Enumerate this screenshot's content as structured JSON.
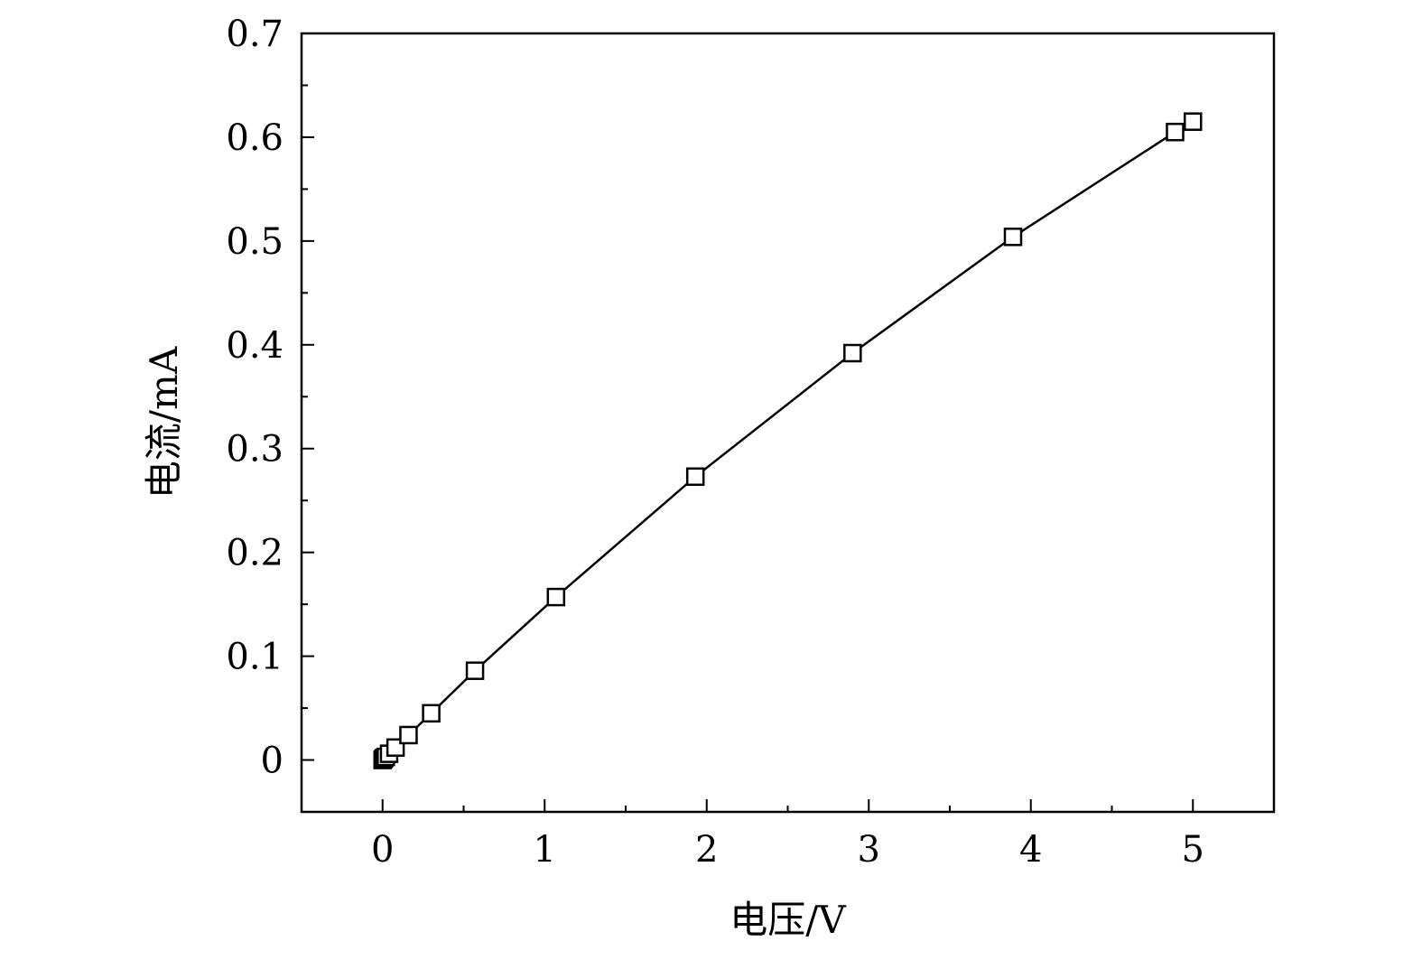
{
  "chart_data": {
    "type": "line",
    "title": "",
    "xlabel": "电压/V",
    "ylabel": "电流/mA",
    "xlim": [
      -0.5,
      5.5
    ],
    "ylim": [
      -0.05,
      0.7
    ],
    "x_ticks": [
      0,
      1,
      2,
      3,
      4,
      5
    ],
    "x_tick_labels": [
      "0",
      "1",
      "2",
      "3",
      "4",
      "5"
    ],
    "y_ticks": [
      0,
      0.1,
      0.2,
      0.3,
      0.4,
      0.5,
      0.6,
      0.7
    ],
    "y_tick_labels": [
      "0",
      "0.1",
      "0.2",
      "0.3",
      "0.4",
      "0.5",
      "0.6",
      "0.7"
    ],
    "grid": false,
    "legend": "none",
    "marker": "open-square",
    "color": "#000000",
    "series": [
      {
        "x": [
          0.0,
          0.005,
          0.01,
          0.02,
          0.04,
          0.08,
          0.16,
          0.3,
          0.57,
          1.07,
          1.93,
          2.9,
          3.89,
          4.89,
          5.0
        ],
        "y": [
          0.0,
          0.001,
          0.002,
          0.003,
          0.006,
          0.012,
          0.024,
          0.045,
          0.086,
          0.157,
          0.273,
          0.392,
          0.504,
          0.605,
          0.615
        ]
      }
    ]
  }
}
